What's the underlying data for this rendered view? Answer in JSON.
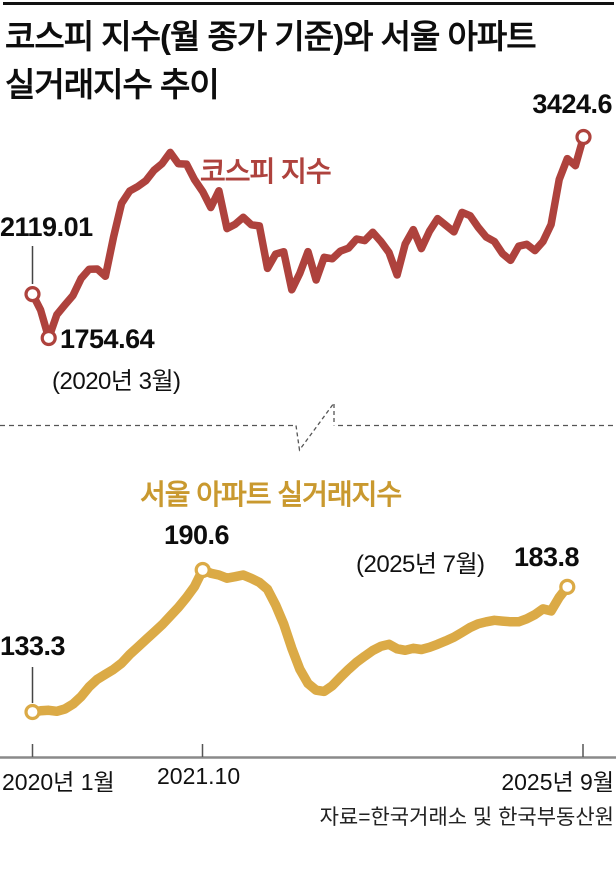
{
  "title": {
    "line1": "코스피 지수(월 종가 기준)와 서울 아파트",
    "line2": "실거래지수 추이"
  },
  "kospi": {
    "name": "코스피 지수",
    "color": "#ae423d",
    "labels": {
      "start": "2119.01",
      "low": "1754.64",
      "low_date": "(2020년 3월)",
      "end": "3424.6"
    }
  },
  "apartment": {
    "name": "서울 아파트 실거래지수",
    "color": "#dbaa46",
    "label_color": "#c9992f",
    "labels": {
      "start": "133.3",
      "peak": "190.6",
      "end_date": "(2025년 7월)",
      "end": "183.8"
    }
  },
  "x_axis": {
    "tick1": "2020년 1월",
    "tick2": "2021.10",
    "tick3": "2025년 9월"
  },
  "source": "자료=한국거래소 및 한국부동산원",
  "chart_data": [
    {
      "type": "line",
      "name": "코스피 지수",
      "subtitle": "월 종가 기준",
      "x_start": "2020-01",
      "x_end": "2025-09",
      "x_interval": "month",
      "x_ticks": [
        "2020년 1월",
        "2021.10",
        "2025년 9월"
      ],
      "color": "#ae423d",
      "values": [
        2119.01,
        1987.01,
        1754.64,
        1947.56,
        2029.6,
        2108.33,
        2249.37,
        2326.17,
        2327.89,
        2267.15,
        2591.34,
        2873.47,
        2976.21,
        3012.95,
        3061.42,
        3147.86,
        3203.92,
        3296.68,
        3202.32,
        3199.27,
        3068.82,
        2970.68,
        2839.01,
        2977.65,
        2663.34,
        2699.18,
        2757.65,
        2695.05,
        2685.9,
        2332.64,
        2451.5,
        2472.05,
        2155.49,
        2293.61,
        2472.53,
        2236.4,
        2425.08,
        2412.85,
        2476.86,
        2501.53,
        2577.12,
        2564.28,
        2632.58,
        2556.27,
        2465.07,
        2277.99,
        2535.29,
        2655.28,
        2497.09,
        2642.36,
        2746.63,
        2692.06,
        2636.52,
        2797.82,
        2770.69,
        2674.31,
        2593.27,
        2556.15,
        2455.91,
        2399.49,
        2517.37,
        2532.78,
        2481.12,
        2556.61,
        2697.67,
        3071.7,
        3245.44,
        3186.01,
        3424.6
      ],
      "annotations": [
        {
          "x": "2020-01",
          "value": 2119.01,
          "label": "2119.01"
        },
        {
          "x": "2020-03",
          "value": 1754.64,
          "label": "1754.64 (2020년 3월)"
        },
        {
          "x": "2025-09",
          "value": 3424.6,
          "label": "3424.6"
        }
      ]
    },
    {
      "type": "line",
      "name": "서울 아파트 실거래지수",
      "x_start": "2020-01",
      "x_end": "2025-07",
      "x_interval": "month",
      "x_ticks": [
        "2020년 1월",
        "2021.10",
        "2025년 9월"
      ],
      "color": "#dbaa46",
      "values": [
        133.3,
        133.8,
        134.0,
        133.6,
        134.5,
        136.5,
        139.5,
        143.5,
        146.5,
        148.5,
        150.5,
        153.0,
        156.5,
        159.5,
        162.5,
        165.5,
        168.5,
        172.0,
        175.5,
        179.5,
        184.0,
        190.6,
        189.3,
        188.6,
        187.3,
        187.9,
        188.6,
        187.2,
        185.6,
        182.8,
        176.5,
        168.8,
        159.0,
        150.5,
        144.8,
        142.1,
        141.6,
        143.9,
        147.3,
        150.5,
        153.4,
        155.8,
        158.1,
        159.8,
        160.6,
        158.8,
        158.2,
        159.0,
        158.5,
        159.4,
        160.6,
        162.0,
        163.5,
        165.4,
        167.4,
        168.9,
        169.7,
        170.3,
        170.0,
        169.7,
        169.7,
        170.9,
        172.6,
        174.9,
        174.1,
        179.6,
        183.8
      ],
      "annotations": [
        {
          "x": "2020-01",
          "value": 133.3,
          "label": "133.3"
        },
        {
          "x": "2021-10",
          "value": 190.6,
          "label": "190.6"
        },
        {
          "x": "2025-07",
          "value": 183.8,
          "label": "(2025년 7월) 183.8"
        }
      ]
    }
  ]
}
